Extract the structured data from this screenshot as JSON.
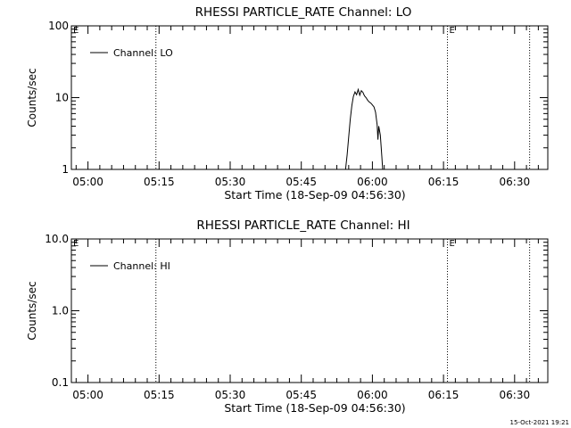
{
  "footer": {
    "timestamp": "15-Oct-2021 19:21"
  },
  "chart_data": [
    {
      "type": "line",
      "title": "RHESSI PARTICLE_RATE Channel: LO",
      "xlabel": "Start Time (18-Sep-09 04:56:30)",
      "ylabel": "Counts/sec",
      "yscale": "log",
      "ylim": [
        1,
        100
      ],
      "y_ticks": [
        "1",
        "10",
        "100"
      ],
      "xlim": [
        "04:56:30",
        "06:37:00"
      ],
      "x_ticks": [
        "05:00",
        "05:15",
        "05:30",
        "05:45",
        "06:00",
        "06:15",
        "06:30"
      ],
      "legend": {
        "label": "Channel: LO",
        "placement": "top-left"
      },
      "event_lines": [
        "05:14:20",
        "06:15:50",
        "06:33:10"
      ],
      "event_markers": [
        {
          "text": "E",
          "at": "04:56:30"
        },
        {
          "text": "E",
          "at": "06:15:50"
        }
      ],
      "series": [
        {
          "name": "Channel: LO",
          "points": [
            [
              "05:54:20",
              1.0
            ],
            [
              "05:54:40",
              1.6
            ],
            [
              "05:55:00",
              2.8
            ],
            [
              "05:55:20",
              5.0
            ],
            [
              "05:55:40",
              7.8
            ],
            [
              "05:56:00",
              10.4
            ],
            [
              "05:56:20",
              12.0
            ],
            [
              "05:56:40",
              11.0
            ],
            [
              "05:57:00",
              13.0
            ],
            [
              "05:57:20",
              10.8
            ],
            [
              "05:57:40",
              12.5
            ],
            [
              "05:58:00",
              11.8
            ],
            [
              "05:58:20",
              10.6
            ],
            [
              "05:58:40",
              10.0
            ],
            [
              "05:59:00",
              9.2
            ],
            [
              "05:59:20",
              8.7
            ],
            [
              "05:59:40",
              8.4
            ],
            [
              "06:00:00",
              7.9
            ],
            [
              "06:00:20",
              7.4
            ],
            [
              "06:00:40",
              6.3
            ],
            [
              "06:01:00",
              4.2
            ],
            [
              "06:01:10",
              2.6
            ],
            [
              "06:01:20",
              4.0
            ],
            [
              "06:01:40",
              3.0
            ],
            [
              "06:02:00",
              1.5
            ],
            [
              "06:02:10",
              1.0
            ]
          ]
        }
      ]
    },
    {
      "type": "line",
      "title": "RHESSI PARTICLE_RATE Channel: HI",
      "xlabel": "Start Time (18-Sep-09 04:56:30)",
      "ylabel": "Counts/sec",
      "yscale": "log",
      "ylim": [
        0.1,
        10
      ],
      "y_ticks": [
        "0.1",
        "1.0",
        "10.0"
      ],
      "xlim": [
        "04:56:30",
        "06:37:00"
      ],
      "x_ticks": [
        "05:00",
        "05:15",
        "05:30",
        "05:45",
        "06:00",
        "06:15",
        "06:30"
      ],
      "legend": {
        "label": "Channel: HI",
        "placement": "top-left"
      },
      "event_lines": [
        "05:14:20",
        "06:15:50",
        "06:33:10"
      ],
      "event_markers": [
        {
          "text": "E",
          "at": "04:56:30"
        },
        {
          "text": "E",
          "at": "06:15:50"
        }
      ],
      "series": [
        {
          "name": "Channel: HI",
          "points": []
        }
      ]
    }
  ]
}
